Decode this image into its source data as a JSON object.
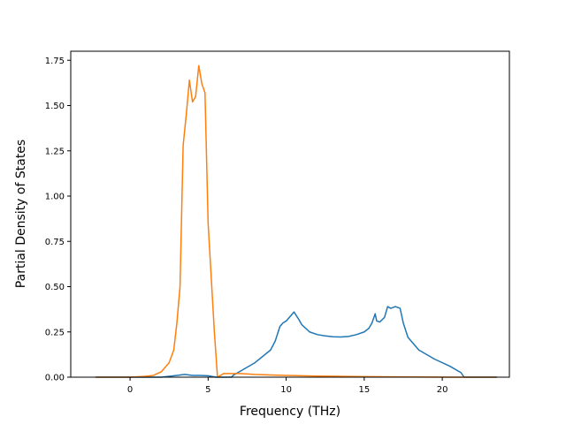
{
  "chart_data": {
    "type": "line",
    "title": "",
    "xlabel": "Frequency (THz)",
    "ylabel": "Partial Density of States",
    "xlim": [
      -3.8,
      24.3
    ],
    "ylim": [
      0,
      1.8
    ],
    "xticks": [
      0,
      5,
      10,
      15,
      20
    ],
    "xtick_labels": [
      "0",
      "5",
      "10",
      "15",
      "20"
    ],
    "yticks": [
      0.0,
      0.25,
      0.5,
      0.75,
      1.0,
      1.25,
      1.5,
      1.75
    ],
    "ytick_labels": [
      "0.00",
      "0.25",
      "0.50",
      "0.75",
      "1.00",
      "1.25",
      "1.50",
      "1.75"
    ],
    "grid": false,
    "legend": "none",
    "series": [
      {
        "color": "#1f77b4",
        "x": [
          -2.2,
          2.0,
          3.0,
          3.5,
          4.0,
          4.5,
          5.0,
          5.5,
          5.8,
          6.5,
          6.6,
          7.0,
          8.0,
          9.0,
          9.3,
          9.6,
          9.8,
          10.0,
          10.5,
          10.8,
          11.0,
          11.5,
          12.0,
          12.5,
          13.0,
          13.5,
          14.0,
          14.5,
          15.0,
          15.3,
          15.5,
          15.7,
          15.8,
          16.0,
          16.3,
          16.5,
          16.7,
          17.0,
          17.3,
          17.5,
          17.8,
          18.5,
          19.5,
          20.5,
          21.2,
          21.4,
          22.0,
          23.5
        ],
        "y": [
          0.0,
          0.0,
          0.01,
          0.015,
          0.01,
          0.01,
          0.008,
          0.0,
          0.0,
          0.0,
          0.01,
          0.03,
          0.08,
          0.15,
          0.2,
          0.28,
          0.3,
          0.31,
          0.36,
          0.32,
          0.29,
          0.25,
          0.235,
          0.228,
          0.223,
          0.222,
          0.225,
          0.235,
          0.25,
          0.27,
          0.3,
          0.35,
          0.31,
          0.305,
          0.33,
          0.39,
          0.38,
          0.39,
          0.38,
          0.3,
          0.22,
          0.15,
          0.1,
          0.06,
          0.025,
          0.0,
          0.0,
          0.0
        ]
      },
      {
        "color": "#ff7f0e",
        "x": [
          -2.2,
          0.0,
          1.0,
          1.5,
          2.0,
          2.5,
          2.8,
          3.0,
          3.2,
          3.4,
          3.6,
          3.8,
          4.0,
          4.2,
          4.4,
          4.6,
          4.8,
          5.0,
          5.2,
          5.4,
          5.6,
          5.8,
          6.0,
          7.0,
          8.0,
          9.0,
          10.0,
          12.0,
          15.0,
          18.0,
          21.0,
          23.5
        ],
        "y": [
          0.0,
          0.0,
          0.005,
          0.01,
          0.03,
          0.08,
          0.15,
          0.3,
          0.5,
          1.28,
          1.45,
          1.64,
          1.52,
          1.55,
          1.72,
          1.62,
          1.57,
          0.85,
          0.55,
          0.25,
          0.0,
          0.01,
          0.02,
          0.02,
          0.015,
          0.012,
          0.01,
          0.006,
          0.003,
          0.001,
          0.0,
          0.0
        ]
      }
    ]
  }
}
